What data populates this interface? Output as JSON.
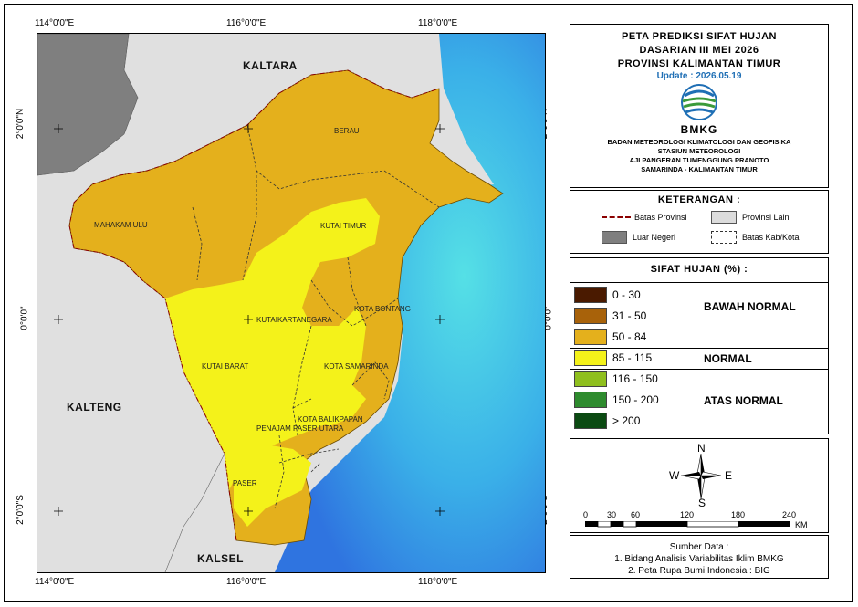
{
  "map": {
    "lon_labels": [
      "114°0'0\"E",
      "116°0'0\"E",
      "118°0'0\"E"
    ],
    "lat_labels": [
      "2°0'0\"N",
      "0°0'0\"",
      "2°0'0\"S"
    ],
    "regions_outside": [
      "KALTARA",
      "KALTENG",
      "KALSEL"
    ],
    "district_labels": [
      "BERAU",
      "MAHAKAM ULU",
      "KUTAI TIMUR",
      "KUTAIKARTANEGARA",
      "KOTA BONTANG",
      "KUTAI BARAT",
      "KOTA SAMARINDA",
      "KOTA BALIKPAPAN",
      "PENAJAM PASER UTARA",
      "PASER"
    ],
    "colors": {
      "sea": "#3a8fe0",
      "other_province": "#dcdcdc",
      "foreign": "#7f7f7f",
      "below_normal": "#e4b01c",
      "normal": "#f4f21a"
    }
  },
  "title": {
    "line1": "PETA PREDIKSI SIFAT HUJAN",
    "line2": "DASARIAN III MEI 2026",
    "line3": "PROVINSI KALIMANTAN TIMUR",
    "update": "Update : 2026.05.19",
    "logo_text": "BMKG",
    "inst1": "BADAN METEOROLOGI KLIMATOLOGI DAN GEOFISIKA",
    "inst2": "STASIUN METEOROLOGI",
    "inst3": "AJI PANGERAN TUMENGGUNG PRANOTO",
    "inst4": "SAMARINDA - KALIMANTAN TIMUR"
  },
  "keterangan": {
    "title": "KETERANGAN :",
    "items": [
      {
        "label": "Batas Provinsi"
      },
      {
        "label": "Provinsi Lain"
      },
      {
        "label": "Luar Negeri"
      },
      {
        "label": "Batas Kab/Kota"
      }
    ]
  },
  "sifat_hujan": {
    "title": "SIFAT HUJAN (%) :",
    "classes": [
      {
        "label": "0 - 30",
        "color": "#4a1a00"
      },
      {
        "label": "31 - 50",
        "color": "#a8620a"
      },
      {
        "label": "50 - 84",
        "color": "#e4b01c"
      },
      {
        "label": "85 - 115",
        "color": "#f4f21a"
      },
      {
        "label": "116 - 150",
        "color": "#8fbf1e"
      },
      {
        "label": "150 - 200",
        "color": "#2e8b2e"
      },
      {
        "label": "> 200",
        "color": "#0b4a12"
      }
    ],
    "categories": [
      "BAWAH NORMAL",
      "NORMAL",
      "ATAS NORMAL"
    ]
  },
  "compass": {
    "n": "N",
    "s": "S",
    "e": "E",
    "w": "W"
  },
  "scale": {
    "ticks": [
      "0",
      "30",
      "60",
      "120",
      "180",
      "240"
    ],
    "unit": "KM"
  },
  "source": {
    "title": "Sumber Data :",
    "line1": "1. Bidang Analisis Variabilitas Iklim BMKG",
    "line2": "2. Peta Rupa Bumi Indonesia : BIG"
  }
}
